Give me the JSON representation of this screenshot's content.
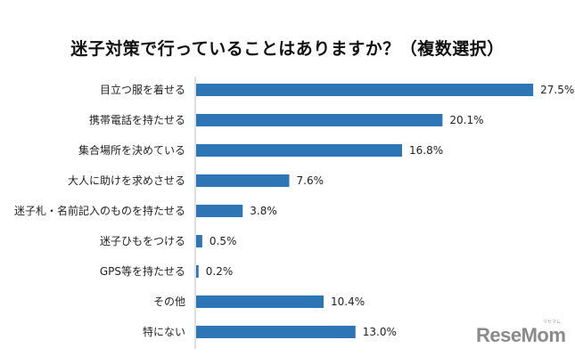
{
  "chart_data": {
    "type": "bar",
    "orientation": "horizontal",
    "title": "迷子対策で行っていることはありますか？（複数選択）",
    "categories": [
      "目立つ服を着せる",
      "携帯電話を持たせる",
      "集合場所を決めている",
      "大人に助けを求めさせる",
      "迷子札・名前記入のものを持たせる",
      "迷子ひもをつける",
      "GPS等を持たせる",
      "その他",
      "特にない"
    ],
    "values": [
      27.5,
      20.1,
      16.8,
      7.6,
      3.8,
      0.5,
      0.2,
      10.4,
      13.0
    ],
    "value_labels": [
      "27.5%",
      "20.1%",
      "16.8%",
      "7.6%",
      "3.8%",
      "0.5%",
      "0.2%",
      "10.4%",
      "13.0%"
    ],
    "unit": "%",
    "xlim": [
      0,
      30
    ],
    "grid": false,
    "legend": "none",
    "bar_color": "#2e75b6"
  },
  "logo": {
    "text": "ReseMom",
    "sub": "リセマム"
  }
}
